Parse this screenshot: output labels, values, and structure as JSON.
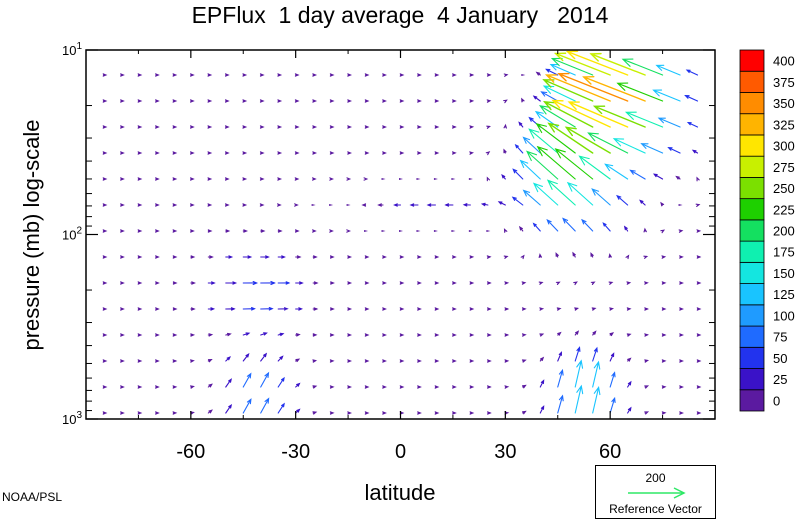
{
  "chart_data": {
    "type": "vector-field",
    "title": "EPFlux  1 day average  4 January   2014",
    "xlabel": "latitude",
    "ylabel": "pressure (mb)  log-scale",
    "xlim": [
      -90,
      90
    ],
    "ylim": [
      1000,
      10
    ],
    "yscale": "log",
    "xticks": [
      {
        "value": -60,
        "label": "-60"
      },
      {
        "value": -30,
        "label": "-30"
      },
      {
        "value": 0,
        "label": "0"
      },
      {
        "value": 30,
        "label": "30"
      },
      {
        "value": 60,
        "label": "60"
      }
    ],
    "yticks": [
      {
        "value": 10,
        "base": "10",
        "exp": "1"
      },
      {
        "value": 100,
        "base": "10",
        "exp": "2"
      },
      {
        "value": 1000,
        "base": "10",
        "exp": "3"
      }
    ],
    "colorbar": {
      "levels": [
        "0",
        "25",
        "50",
        "75",
        "100",
        "125",
        "150",
        "175",
        "200",
        "225",
        "250",
        "275",
        "300",
        "325",
        "350",
        "375",
        "400"
      ],
      "colors": [
        "#5b1aa0",
        "#3a12c8",
        "#2233ee",
        "#1f6bff",
        "#1f9bff",
        "#19c4ff",
        "#14e6e0",
        "#0ff0b0",
        "#14e060",
        "#1ed000",
        "#7be000",
        "#c8f000",
        "#ffe600",
        "#ffb400",
        "#ff8c00",
        "#ff5a00",
        "#ff0000"
      ]
    },
    "reference_vector": {
      "magnitude": "200",
      "label": "Reference Vector",
      "color": "#2ee866"
    },
    "credit": "NOAA/PSL"
  }
}
